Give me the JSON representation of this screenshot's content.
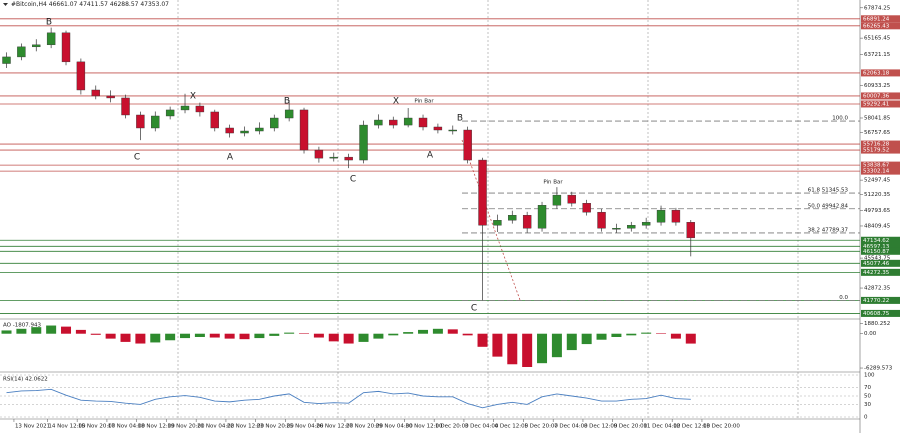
{
  "chart_data": {
    "type": "candlestick",
    "title": "#Bitcoin,H4  46661.07 47411.57 46288.57 47353.07",
    "xlim": [
      -15,
      910
    ],
    "xticks": [
      {
        "value": 0,
        "label": "13 Nov 2021"
      },
      {
        "value": 36,
        "label": "14 Nov 12:00"
      },
      {
        "value": 68,
        "label": "15 Nov 20:00"
      },
      {
        "value": 100,
        "label": "17 Nov 04:00"
      },
      {
        "value": 132,
        "label": "18 Nov 12:00"
      },
      {
        "value": 164,
        "label": "19 Nov 20:00"
      },
      {
        "value": 196,
        "label": "21 Nov 04:00"
      },
      {
        "value": 228,
        "label": "22 Nov 12:00"
      },
      {
        "value": 260,
        "label": "23 Nov 20:00"
      },
      {
        "value": 292,
        "label": "25 Nov 04:00"
      },
      {
        "value": 324,
        "label": "26 Nov 12:00"
      },
      {
        "value": 356,
        "label": "27 Nov 20:00"
      },
      {
        "value": 388,
        "label": "29 Nov 04:00"
      },
      {
        "value": 420,
        "label": "30 Nov 12:00"
      },
      {
        "value": 452,
        "label": "1 Dec 20:00"
      },
      {
        "value": 484,
        "label": "3 Dec 04:00"
      },
      {
        "value": 516,
        "label": "4 Dec 12:00"
      },
      {
        "value": 548,
        "label": "5 Dec 20:00"
      },
      {
        "value": 580,
        "label": "7 Dec 04:00"
      },
      {
        "value": 612,
        "label": "8 Dec 12:00"
      },
      {
        "value": 644,
        "label": "9 Dec 20:00"
      },
      {
        "value": 676,
        "label": "11 Dec 04:00"
      },
      {
        "value": 708,
        "label": "12 Dec 12:00"
      },
      {
        "value": 740,
        "label": "13 Dec 20:00"
      }
    ],
    "ylim": [
      40200,
      68300
    ],
    "yticks": [
      67874.25,
      65165.45,
      63721.15,
      60933.25,
      58041.85,
      56757.65,
      52497.45,
      51220.35,
      49793.65,
      48409.45,
      45543.75,
      42872.35
    ],
    "up_color": "#2e8b2e",
    "down_color": "#c8102e",
    "x": [
      -8,
      8,
      24,
      40,
      56,
      72,
      88,
      104,
      120,
      136,
      152,
      168,
      184,
      200,
      216,
      232,
      248,
      264,
      280,
      296,
      312,
      328,
      344,
      360,
      376,
      392,
      408,
      424,
      440,
      456,
      472,
      488,
      504,
      520,
      536,
      552,
      568,
      584,
      600,
      616,
      632,
      648,
      664,
      680,
      696,
      712,
      728
    ],
    "open": [
      62900,
      63490,
      64390,
      64570,
      65640,
      63050,
      60540,
      60010,
      59830,
      58310,
      57150,
      58220,
      58760,
      59110,
      58580,
      57150,
      56700,
      56880,
      57150,
      58040,
      58760,
      55180,
      54460,
      54550,
      54290,
      57410,
      57860,
      57410,
      58040,
      57240,
      56970,
      56970,
      54290,
      48470,
      48920,
      49370,
      48210,
      50260,
      51160,
      50440,
      49640,
      48210,
      48210,
      48470,
      48740,
      49820,
      48740
    ],
    "high": [
      63890,
      64690,
      65070,
      66100,
      65840,
      63350,
      60940,
      60510,
      60130,
      58610,
      58620,
      59060,
      60200,
      59410,
      58780,
      57450,
      57280,
      57650,
      58340,
      59650,
      58960,
      55480,
      54950,
      54850,
      57810,
      58360,
      58160,
      58930,
      58340,
      57540,
      57370,
      57270,
      54490,
      49420,
      49770,
      49670,
      50560,
      51870,
      51460,
      50740,
      49940,
      48610,
      48770,
      49140,
      50220,
      50020,
      48940
    ],
    "low": [
      62500,
      63190,
      63990,
      64270,
      62750,
      60140,
      59710,
      59430,
      58010,
      56070,
      56850,
      57920,
      58460,
      58180,
      56850,
      56300,
      56400,
      56580,
      56850,
      57740,
      54880,
      54060,
      54160,
      53570,
      53990,
      57110,
      57110,
      57210,
      56940,
      56670,
      56570,
      53990,
      41770,
      47870,
      48620,
      47810,
      47910,
      49960,
      50140,
      49340,
      47910,
      47810,
      47910,
      48170,
      48440,
      48440,
      45700
    ],
    "close": [
      63490,
      64390,
      64570,
      65640,
      63050,
      60540,
      60010,
      59830,
      58310,
      57150,
      58220,
      58760,
      59110,
      58580,
      57150,
      56700,
      56880,
      57150,
      58040,
      58760,
      55180,
      54460,
      54550,
      54290,
      57410,
      57860,
      57410,
      58040,
      57240,
      56970,
      56970,
      54290,
      48470,
      48920,
      49370,
      48210,
      50260,
      51160,
      50440,
      49640,
      48210,
      48210,
      48470,
      48740,
      49820,
      48740,
      47350
    ],
    "levels": [
      {
        "value": 66891.24,
        "color": "#c0504d"
      },
      {
        "value": 66265.43,
        "color": "#c0504d"
      },
      {
        "value": 62063.18,
        "color": "#c0504d"
      },
      {
        "value": 60007.36,
        "color": "#c0504d"
      },
      {
        "value": 59292.41,
        "color": "#c0504d"
      },
      {
        "value": 55716.28,
        "color": "#c0504d"
      },
      {
        "value": 55179.52,
        "color": "#c0504d"
      },
      {
        "value": 53838.67,
        "color": "#c0504d"
      },
      {
        "value": 53302.14,
        "color": "#c0504d"
      },
      {
        "value": 47134.62,
        "color": "#2e7d32"
      },
      {
        "value": 46597.13,
        "color": "#2e7d32"
      },
      {
        "value": 46150.87,
        "color": "#2e7d32"
      },
      {
        "value": 45077.46,
        "color": "#2e7d32"
      },
      {
        "value": 44272.35,
        "color": "#2e7d32"
      },
      {
        "value": 41770.22,
        "color": "#2e7d32"
      },
      {
        "value": 40608.75,
        "color": "#2e7d32"
      }
    ],
    "fib": [
      {
        "value": 57770,
        "label": "100.0"
      },
      {
        "value": 51345.53,
        "label": "61.8 51345.53"
      },
      {
        "value": 49942.84,
        "label": "50.0 49942.84"
      },
      {
        "value": 47789.37,
        "label": "38.2 47789.37"
      },
      {
        "value": 41770,
        "label": "0.0"
      }
    ],
    "annotations": [
      "B",
      "C",
      "X",
      "A",
      "B",
      "X",
      "C",
      "A",
      "B",
      "C",
      "Pin Bar",
      "Pin Bar"
    ],
    "indicators": [
      {
        "type": "histogram",
        "title": "AO -1807.943",
        "ylim": [
          -6650,
          2330
        ],
        "yticks": [
          1880.252,
          {
            "value": 0,
            "label": "0.00"
          },
          -6289.573
        ],
        "up_color": "#2e8b2e",
        "down_color": "#c8102e",
        "values": [
          600,
          900,
          1200,
          1500,
          1300,
          700,
          -200,
          -900,
          -1500,
          -1800,
          -1600,
          -1200,
          -800,
          -600,
          -700,
          -900,
          -1000,
          -800,
          -400,
          200,
          100,
          -700,
          -1400,
          -1800,
          -1500,
          -900,
          -300,
          300,
          700,
          900,
          800,
          -300,
          -2400,
          -4200,
          -5600,
          -6100,
          -5400,
          -4300,
          -3000,
          -1900,
          -1100,
          -600,
          -300,
          200,
          100,
          -900,
          -1807.943
        ]
      },
      {
        "type": "line",
        "title": "RSI(14) 42.0622",
        "ylim": [
          0,
          100
        ],
        "yticks": [
          100,
          70,
          50,
          30,
          0
        ],
        "color": "#4a7fc1",
        "values": [
          58,
          62,
          63,
          66,
          52,
          40,
          38,
          37,
          33,
          30,
          42,
          48,
          51,
          47,
          38,
          36,
          40,
          42,
          50,
          55,
          35,
          32,
          34,
          33,
          58,
          61,
          55,
          57,
          50,
          48,
          48,
          32,
          22,
          30,
          35,
          30,
          48,
          55,
          50,
          45,
          38,
          38,
          42,
          44,
          52,
          44,
          42.0622
        ]
      }
    ]
  }
}
